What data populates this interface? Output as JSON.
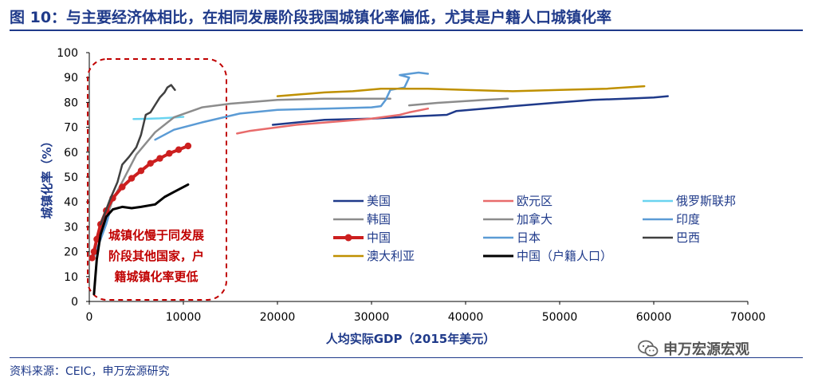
{
  "header": {
    "title": "图 10：与主要经济体相比，在相同发展阶段我国城镇化率偏低，尤其是户籍人口城镇化率"
  },
  "footer": {
    "source": "资料来源：CEIC，申万宏源研究",
    "watermark": "申万宏源宏观",
    "watermark_icon": "wechat-icon"
  },
  "chart_data": {
    "type": "line",
    "title": "",
    "xlabel": "人均实际GDP（2015年美元）",
    "ylabel": "城镇化率（%）",
    "xlim": [
      0,
      70000
    ],
    "ylim": [
      0,
      100
    ],
    "xticks": [
      0,
      10000,
      20000,
      30000,
      40000,
      50000,
      60000,
      70000
    ],
    "yticks": [
      0,
      10,
      20,
      30,
      40,
      50,
      60,
      70,
      80,
      90,
      100
    ],
    "grid": false,
    "legend_position": "right",
    "annotation": {
      "lines": [
        "城镇化慢于同发展",
        "阶段其他国家，户",
        "籍城镇化率更低"
      ],
      "color": "#c00000",
      "box": "dashed-rounded"
    },
    "series": [
      {
        "name": "美国",
        "color": "#1f3a8a",
        "width": 2.5,
        "x": [
          19500,
          25000,
          30000,
          35000,
          38000,
          39000,
          45000,
          50000,
          53500,
          57000,
          60000,
          61500
        ],
        "y": [
          71,
          73,
          73.5,
          74.5,
          75,
          76.5,
          78.5,
          80,
          81,
          81.5,
          82,
          82.5
        ]
      },
      {
        "name": "欧元区",
        "color": "#e86b6b",
        "width": 2.5,
        "x": [
          15700,
          17000,
          22000,
          27000,
          30000,
          33000,
          34000,
          36000
        ],
        "y": [
          67.5,
          68.5,
          71,
          72.5,
          73.5,
          75,
          76,
          77.5
        ]
      },
      {
        "name": "俄罗斯联邦",
        "color": "#6ad4f0",
        "width": 2.5,
        "x": [
          4700,
          6000,
          7500,
          8500,
          10000
        ],
        "y": [
          73.3,
          73.4,
          73.6,
          73.8,
          74.2
        ]
      },
      {
        "name": "韩国",
        "color": "#8c8c8c",
        "width": 2.5,
        "x": [
          1500,
          2500,
          3500,
          5000,
          7000,
          9000,
          12000,
          15000,
          20000,
          25000,
          30000,
          32000
        ],
        "y": [
          30,
          41,
          48,
          59,
          68,
          74,
          78,
          79.5,
          81,
          81.5,
          81.5,
          81.5
        ]
      },
      {
        "name": "加拿大",
        "color": "#8c8c8c",
        "width": 2.5,
        "x": [
          34000,
          37000,
          40000,
          42000,
          44500
        ],
        "y": [
          78.8,
          79.8,
          80.5,
          81,
          81.5
        ]
      },
      {
        "name": "印度",
        "color": "#5b9bd5",
        "width": 2.5,
        "x": [
          400,
          600,
          900,
          1200,
          1500,
          1800,
          2100
        ],
        "y": [
          17.5,
          19,
          22,
          25,
          28,
          31,
          35
        ]
      },
      {
        "name": "中国",
        "color": "#cc1f1f",
        "width": 4,
        "marker": true,
        "x": [
          300,
          500,
          800,
          1200,
          1800,
          2500,
          3500,
          4500,
          5500,
          6500,
          7500,
          8500,
          9500,
          10500
        ],
        "y": [
          17.5,
          20,
          25,
          31,
          36.5,
          41.5,
          46,
          49.5,
          52.5,
          55.5,
          57.5,
          59.5,
          61,
          62.5
        ]
      },
      {
        "name": "日本",
        "color": "#5b9bd5",
        "width": 2.5,
        "x": [
          7000,
          9000,
          12000,
          16000,
          20000,
          25000,
          30000,
          31000,
          31500,
          32000,
          33500,
          34000,
          33000,
          35000,
          36000
        ],
        "y": [
          65,
          69,
          72,
          75.5,
          77,
          77.5,
          78,
          78.5,
          81,
          85,
          86,
          90,
          91,
          92,
          91.5
        ]
      },
      {
        "name": "巴西",
        "color": "#404040",
        "width": 2.5,
        "x": [
          1200,
          2200,
          3000,
          3500,
          4200,
          5000,
          5500,
          6000,
          6500,
          7000,
          7500,
          8000,
          8300,
          8700,
          9100
        ],
        "y": [
          31,
          41,
          48,
          55,
          58,
          62,
          67,
          75,
          76,
          79,
          82,
          84,
          86,
          87,
          85
        ]
      },
      {
        "name": "澳大利亚",
        "color": "#bf9000",
        "width": 2.5,
        "x": [
          20000,
          25000,
          28000,
          31000,
          36000,
          40000,
          45000,
          50000,
          55000,
          59000
        ],
        "y": [
          82.5,
          84,
          84.5,
          85.5,
          85.5,
          85,
          84.5,
          85,
          85.5,
          86.5
        ]
      },
      {
        "name": "中国（户籍人口）",
        "color": "#000000",
        "width": 3,
        "x": [
          500,
          800,
          1200,
          1800,
          2500,
          3500,
          4500,
          5500,
          7000,
          8000,
          9000,
          10500
        ],
        "y": [
          3,
          17,
          27,
          34,
          37,
          38,
          37.5,
          38,
          39,
          42,
          44,
          47
        ]
      }
    ]
  }
}
